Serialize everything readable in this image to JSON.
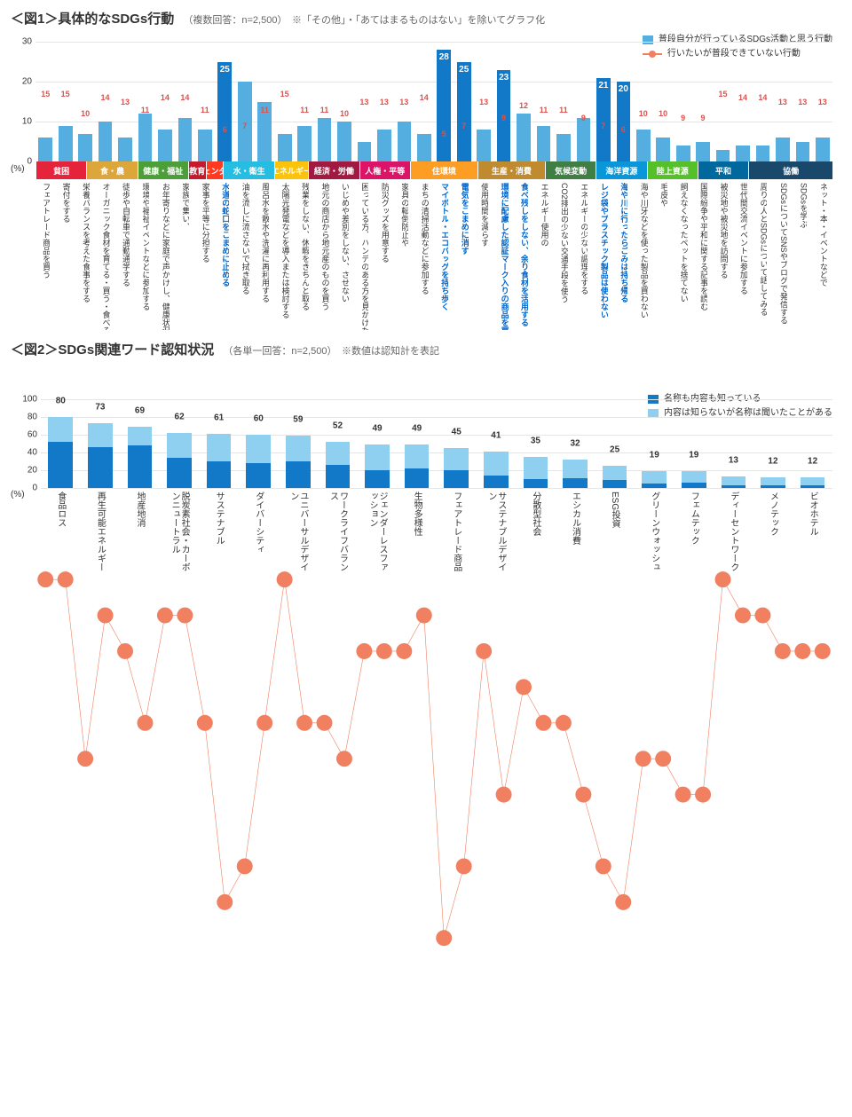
{
  "fig1": {
    "title": "＜図1＞具体的なSDGs行動",
    "title_sub": "（複数回答：n=2,500）　※「その他」・「あてはまるものはない」を除いてグラフ化",
    "legend": {
      "bar": "普段自分が行っているSDGs活動と思う行動",
      "line": "行いたいが普段できていない行動"
    },
    "bar_color": "#54aee0",
    "highlight_bar_color": "#1278c8",
    "line_color": "#f08060",
    "ylim": [
      0,
      30
    ],
    "ytick_step": 10,
    "pct_label": "(%)",
    "categories": [
      {
        "name": "貧困",
        "span": 3,
        "color": "#e5243b"
      },
      {
        "name": "食・農",
        "span": 3,
        "color": "#dda63a"
      },
      {
        "name": "健康・福祉",
        "span": 3,
        "color": "#4c9f38"
      },
      {
        "name": "教育",
        "span": 1,
        "color": "#c5192d"
      },
      {
        "name": "ジェンダー",
        "span": 1,
        "color": "#ff3a21"
      },
      {
        "name": "水・衛生",
        "span": 3,
        "color": "#26bde2"
      },
      {
        "name": "エネルギー",
        "span": 2,
        "color": "#fcc30b"
      },
      {
        "name": "経済・労働",
        "span": 3,
        "color": "#a21942"
      },
      {
        "name": "人権・平等",
        "span": 3,
        "color": "#dd1367"
      },
      {
        "name": "住環境",
        "span": 4,
        "color": "#fd9d24"
      },
      {
        "name": "生産・消費",
        "span": 4,
        "color": "#bf8b2e"
      },
      {
        "name": "気候変動",
        "span": 3,
        "color": "#3f7e44"
      },
      {
        "name": "海洋資源",
        "span": 3,
        "color": "#0a97d9"
      },
      {
        "name": "陸上資源",
        "span": 3,
        "color": "#56c02b"
      },
      {
        "name": "平和",
        "span": 3,
        "color": "#00689d"
      },
      {
        "name": "協働",
        "span": 5,
        "color": "#19486a"
      }
    ],
    "items": [
      {
        "label": "フェアトレード商品を買う",
        "bar": 6,
        "line": 15
      },
      {
        "label": "寄付をする",
        "bar": 9,
        "line": 15
      },
      {
        "label": "栄養バランスを考えた食事をする",
        "bar": 7,
        "line": 10
      },
      {
        "label": "オーガニック食材を育てる・買う・食べる",
        "bar": 10,
        "line": 14
      },
      {
        "label": "徒歩や自転車で通勤通学する",
        "bar": 6,
        "line": 13
      },
      {
        "label": "環境や福祉イベントなどに参加する",
        "bar": 12,
        "line": 11
      },
      {
        "label": "お年寄りなどに家庭で声かけし、健康状況を尋ねる",
        "bar": 8,
        "line": 14
      },
      {
        "label": "家族で集い、",
        "bar": 11,
        "line": 14
      },
      {
        "label": "家事を平等に分担する",
        "bar": 8,
        "line": 11
      },
      {
        "label": "水道の蛇口をこまめに止める",
        "bar": 25,
        "line": 6,
        "highlight": true,
        "label_hl": true
      },
      {
        "label": "油を流しに流さないで拭き取る",
        "bar": 20,
        "line": 7
      },
      {
        "label": "風呂水を散水や洗濯に再利用する",
        "bar": 15,
        "line": 11
      },
      {
        "label": "太陽光発電などを導入または検討する",
        "bar": 7,
        "line": 15
      },
      {
        "label": "残業をしない、休暇をきちんと取る",
        "bar": 9,
        "line": 11
      },
      {
        "label": "地元の商店から地元産のものを買う",
        "bar": 11,
        "line": 11
      },
      {
        "label": "いじめや差別をしない、させない",
        "bar": 10,
        "line": 10
      },
      {
        "label": "困っている方、ハンデのある方を見かけたら声をかける",
        "bar": 5,
        "line": 13
      },
      {
        "label": "防災グッズを用意する",
        "bar": 8,
        "line": 13
      },
      {
        "label": "家具の転倒防止や",
        "bar": 10,
        "line": 13
      },
      {
        "label": "まちの清掃活動などに参加する",
        "bar": 7,
        "line": 14
      },
      {
        "label": "マイボトル・エコバッグを持ち歩く",
        "bar": 28,
        "line": 5,
        "highlight": true,
        "label_hl": true
      },
      {
        "label": "電気をこまめに消す",
        "bar": 25,
        "line": 7,
        "highlight": true,
        "label_hl": true
      },
      {
        "label": "使用時間を減らす",
        "bar": 8,
        "line": 13
      },
      {
        "label": "環境に配慮した認証マーク入りの商品を買う",
        "bar": 23,
        "line": 9,
        "highlight": true,
        "label_hl": true
      },
      {
        "label": "食べ残しをしない、余り食材を活用する",
        "bar": 12,
        "line": 12,
        "label_hl": true
      },
      {
        "label": "エネルギー使用の",
        "bar": 9,
        "line": 11
      },
      {
        "label": "CO2排出の少ない交通手段を使う",
        "bar": 7,
        "line": 11
      },
      {
        "label": "エネルギーの少ない調理をする",
        "bar": 11,
        "line": 9
      },
      {
        "label": "レジ袋やプラスチック製品は使わない",
        "bar": 21,
        "line": 7,
        "highlight": true,
        "label_hl": true
      },
      {
        "label": "海や川に行ったらごみは持ち帰る",
        "bar": 20,
        "line": 6,
        "highlight": true,
        "label_hl": true
      },
      {
        "label": "海や川牙などを使った製品を買わない",
        "bar": 8,
        "line": 10
      },
      {
        "label": "毛皮や",
        "bar": 6,
        "line": 10
      },
      {
        "label": "飼えなくなったペットを捨てない",
        "bar": 4,
        "line": 9
      },
      {
        "label": "国際紛争や平和に関する記事を読む",
        "bar": 5,
        "line": 9
      },
      {
        "label": "被災地や被災地を訪問する",
        "bar": 3,
        "line": 15
      },
      {
        "label": "世代間交流イベントに参加する",
        "bar": 4,
        "line": 14
      },
      {
        "label": "周りの人とSDGsについて話してみる",
        "bar": 4,
        "line": 14
      },
      {
        "label": "SDGsについてSNSやブログで発信する",
        "bar": 6,
        "line": 13
      },
      {
        "label": "SDGsを学ぶ",
        "bar": 5,
        "line": 13
      },
      {
        "label": "ネット・本・イベントなどで",
        "bar": 6,
        "line": 13
      }
    ]
  },
  "fig2": {
    "title": "＜図2＞SDGs関連ワード認知状況",
    "title_sub": "（各単一回答：n=2,500）　※数値は認知計を表記",
    "legend": {
      "a": "名称も内容も知っている",
      "b": "内容は知らないが名称は聞いたことがある"
    },
    "color_a": "#1278c8",
    "color_b": "#8fcff0",
    "ylim": [
      0,
      100
    ],
    "ytick_step": 20,
    "pct_label": "(%)",
    "items": [
      {
        "label": "食品ロス",
        "total": 80,
        "a": 52
      },
      {
        "label": "再生可能エネルギー",
        "total": 73,
        "a": 46
      },
      {
        "label": "地産地消",
        "total": 69,
        "a": 48
      },
      {
        "label": "脱炭素社会・カーボンニュートラル",
        "total": 62,
        "a": 34
      },
      {
        "label": "サステナブル",
        "total": 61,
        "a": 30
      },
      {
        "label": "ダイバーシティ",
        "total": 60,
        "a": 28
      },
      {
        "label": "ユニバーサルデザイン",
        "total": 59,
        "a": 30
      },
      {
        "label": "ワークライフバランス",
        "total": 52,
        "a": 26
      },
      {
        "label": "ジェンダーレスファッション",
        "total": 49,
        "a": 20
      },
      {
        "label": "生物多様性",
        "total": 49,
        "a": 22
      },
      {
        "label": "フェアトレード商品",
        "total": 45,
        "a": 20
      },
      {
        "label": "サステナブルデザイン",
        "total": 41,
        "a": 14
      },
      {
        "label": "分散型社会",
        "total": 35,
        "a": 10
      },
      {
        "label": "エシカル消費",
        "total": 32,
        "a": 11
      },
      {
        "label": "ESG投資",
        "total": 25,
        "a": 9
      },
      {
        "label": "グリーンウォッシュ",
        "total": 19,
        "a": 5
      },
      {
        "label": "フェムテック",
        "total": 19,
        "a": 6
      },
      {
        "label": "ディーセントワーク",
        "total": 13,
        "a": 3
      },
      {
        "label": "メノテック",
        "total": 12,
        "a": 3
      },
      {
        "label": "ビオホテル",
        "total": 12,
        "a": 3
      }
    ]
  }
}
